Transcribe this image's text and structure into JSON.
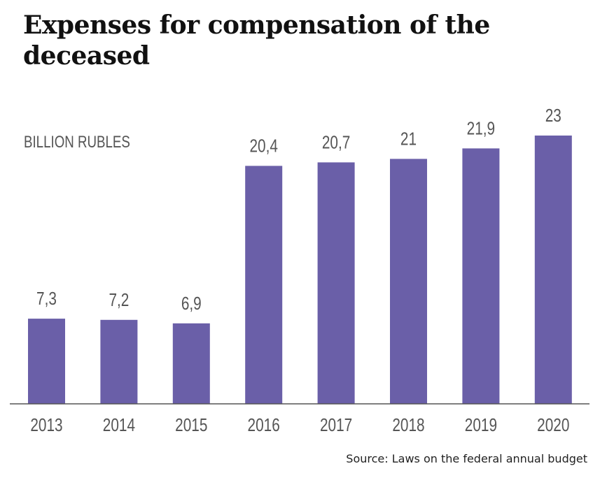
{
  "title": "Expenses for compensation of the deceased",
  "unit_label": "BILLION RUBLES",
  "source": "Source: Laws on the federal annual budget",
  "colors": {
    "bar": "#6a5fa8",
    "axis": "#555555",
    "text": "#555555"
  },
  "chart_data": {
    "type": "bar",
    "categories": [
      "2013",
      "2014",
      "2015",
      "2016",
      "2017",
      "2018",
      "2019",
      "2020"
    ],
    "values": [
      7.3,
      7.2,
      6.9,
      20.4,
      20.7,
      21,
      21.9,
      23
    ],
    "value_labels": [
      "7,3",
      "7,2",
      "6,9",
      "20,4",
      "20,7",
      "21",
      "21,9",
      "23"
    ],
    "title": "Expenses for compensation of the deceased",
    "ylabel": "BILLION RUBLES",
    "xlabel": "",
    "ylim": [
      0,
      23
    ],
    "grid": false,
    "legend": "none"
  }
}
